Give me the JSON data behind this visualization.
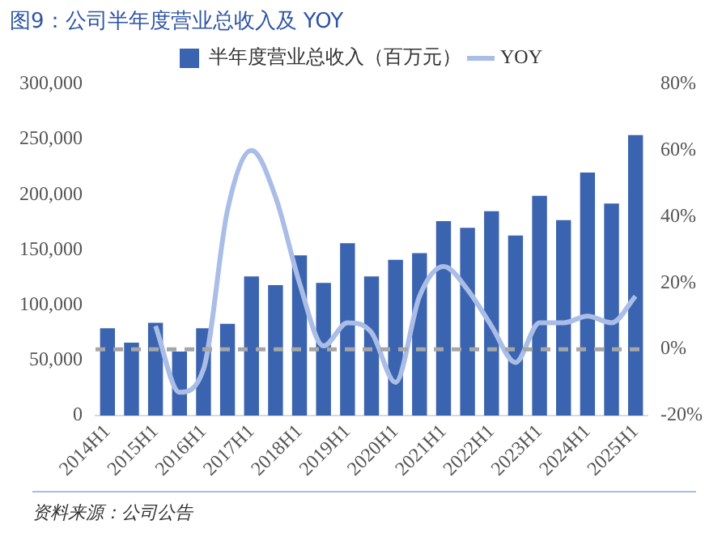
{
  "chart_data": {
    "type": "bar",
    "title": "图9：公司半年度营业总收入及 YOY",
    "categories": [
      "2014H1",
      null,
      "2015H1",
      null,
      "2016H1",
      null,
      "2017H1",
      null,
      "2018H1",
      null,
      "2019H1",
      null,
      "2020H1",
      null,
      "2021H1",
      null,
      "2022H1",
      null,
      "2023H1",
      null,
      "2024H1",
      null,
      "2025H1"
    ],
    "series": [
      {
        "name": "半年度营业总收入（百万元）",
        "color": "#3a63b0",
        "values": [
          79000,
          66000,
          84000,
          58000,
          79000,
          83000,
          126000,
          118000,
          145000,
          120000,
          156000,
          126000,
          141000,
          147000,
          176000,
          170000,
          185000,
          163000,
          199000,
          177000,
          220000,
          192000,
          254000
        ]
      },
      {
        "name": "YOY",
        "type": "line",
        "axis": "y2",
        "color": "#a9bde6",
        "values": [
          null,
          null,
          7,
          -13,
          -6,
          42,
          60,
          46,
          20,
          1,
          8,
          5,
          -10,
          16,
          25,
          18,
          7,
          -4,
          8,
          8,
          10,
          8,
          16
        ]
      }
    ],
    "ylim": [
      0,
      300000
    ],
    "yticks": [
      {
        "value": 0,
        "label": "0"
      },
      {
        "value": 50000,
        "label": "50,000"
      },
      {
        "value": 100000,
        "label": "100,000"
      },
      {
        "value": 150000,
        "label": "150,000"
      },
      {
        "value": 200000,
        "label": "200,000"
      },
      {
        "value": 250000,
        "label": "250,000"
      },
      {
        "value": 300000,
        "label": "300,000"
      }
    ],
    "y2lim": [
      -20,
      80
    ],
    "y2ticks": [
      {
        "value": -20,
        "label": "-20%"
      },
      {
        "value": 0,
        "label": "0%"
      },
      {
        "value": 20,
        "label": "20%"
      },
      {
        "value": 40,
        "label": "40%"
      },
      {
        "value": 60,
        "label": "60%"
      },
      {
        "value": 80,
        "label": "80%"
      }
    ],
    "ref_lines": [
      {
        "axis": "y2",
        "value": 0,
        "color": "#a6a6a6",
        "line_style": "dashed"
      }
    ],
    "grid": false,
    "legend": "top",
    "marker": "none",
    "annotations": [
      "资料来源：公司公告"
    ]
  }
}
